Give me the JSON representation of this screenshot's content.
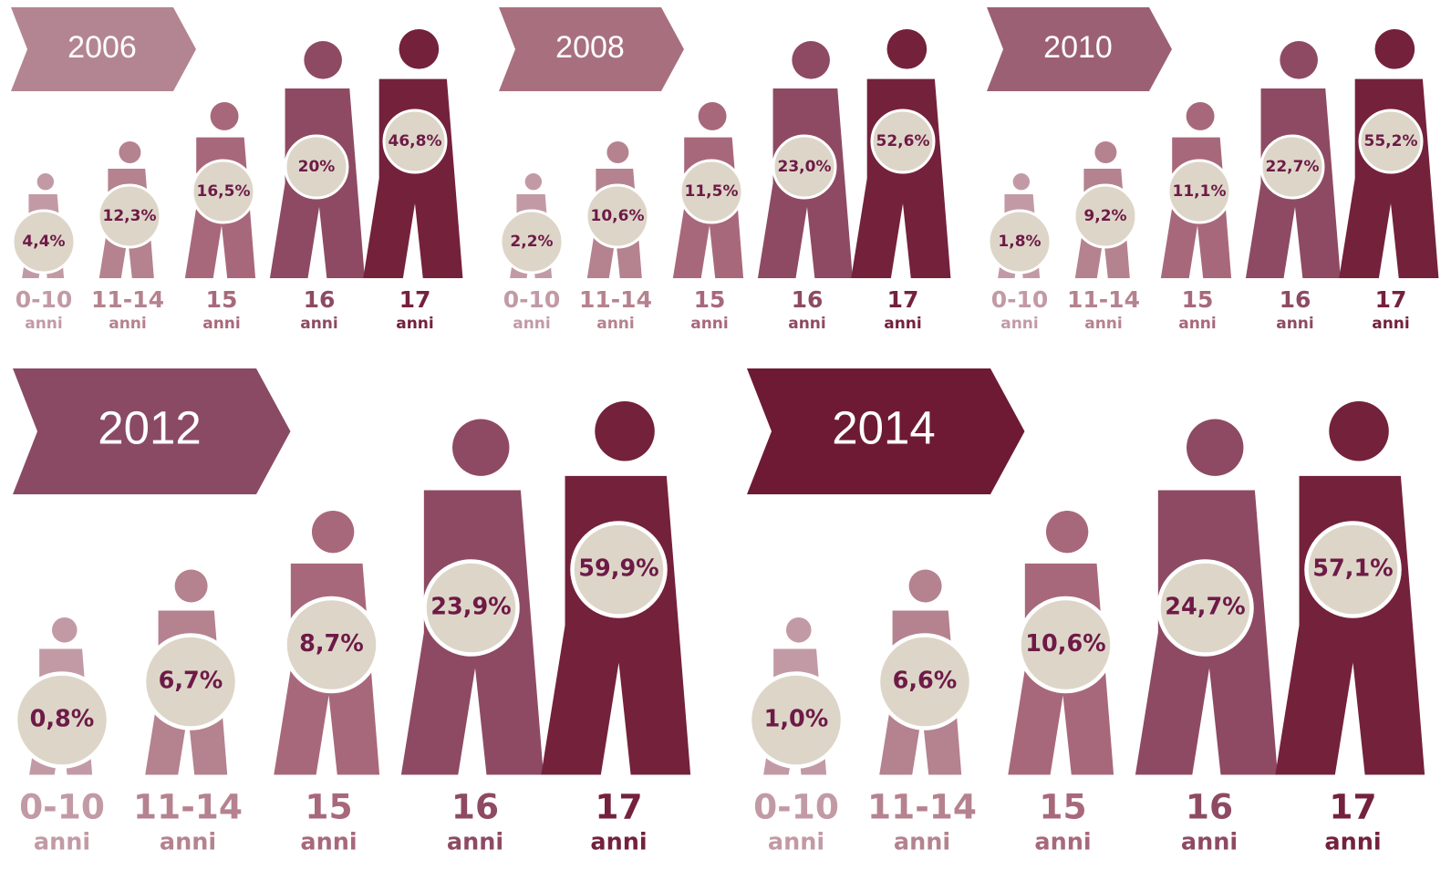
{
  "chart_data": [
    {
      "type": "pictogram",
      "title": "2006",
      "color": "#b38592",
      "colors": [
        "#c29aa5",
        "#b5828f",
        "#a8687b",
        "#8e4a63",
        "#74213c"
      ],
      "categories": [
        "0-10",
        "11-14",
        "15",
        "16",
        "17"
      ],
      "category_unit": "anni",
      "values": [
        4.4,
        12.3,
        16.5,
        20,
        46.8
      ],
      "value_labels": [
        "4,4%",
        "12,3%",
        "16,5%",
        "20%",
        "46,8%"
      ]
    },
    {
      "type": "pictogram",
      "title": "2008",
      "color": "#a8707f",
      "colors": [
        "#c29aa5",
        "#b5828f",
        "#a8687b",
        "#8e4a63",
        "#74213c"
      ],
      "categories": [
        "0-10",
        "11-14",
        "15",
        "16",
        "17"
      ],
      "category_unit": "anni",
      "values": [
        2.2,
        10.6,
        11.5,
        23.0,
        52.6
      ],
      "value_labels": [
        "2,2%",
        "10,6%",
        "11,5%",
        "23,0%",
        "52,6%"
      ]
    },
    {
      "type": "pictogram",
      "title": "2010",
      "color": "#9c6075",
      "colors": [
        "#c29aa5",
        "#b5828f",
        "#a8687b",
        "#8e4a63",
        "#74213c"
      ],
      "categories": [
        "0-10",
        "11-14",
        "15",
        "16",
        "17"
      ],
      "category_unit": "anni",
      "values": [
        1.8,
        9.2,
        11.1,
        22.7,
        55.2
      ],
      "value_labels": [
        "1,8%",
        "9,2%",
        "11,1%",
        "22,7%",
        "55,2%"
      ]
    },
    {
      "type": "pictogram",
      "title": "2012",
      "color": "#8a4a63",
      "colors": [
        "#c29aa5",
        "#b5828f",
        "#a8687b",
        "#8e4a63",
        "#74213c"
      ],
      "categories": [
        "0-10",
        "11-14",
        "15",
        "16",
        "17"
      ],
      "category_unit": "anni",
      "values": [
        0.8,
        6.7,
        8.7,
        23.9,
        59.9
      ],
      "value_labels": [
        "0,8%",
        "6,7%",
        "8,7%",
        "23,9%",
        "59,9%"
      ]
    },
    {
      "type": "pictogram",
      "title": "2014",
      "color": "#6e1a35",
      "colors": [
        "#c29aa5",
        "#b5828f",
        "#a8687b",
        "#8e4a63",
        "#74213c"
      ],
      "categories": [
        "0-10",
        "11-14",
        "15",
        "16",
        "17"
      ],
      "category_unit": "anni",
      "values": [
        1.0,
        6.6,
        10.6,
        24.7,
        57.1
      ],
      "value_labels": [
        "1,0%",
        "6,6%",
        "10,6%",
        "24,7%",
        "57,1%"
      ]
    }
  ]
}
